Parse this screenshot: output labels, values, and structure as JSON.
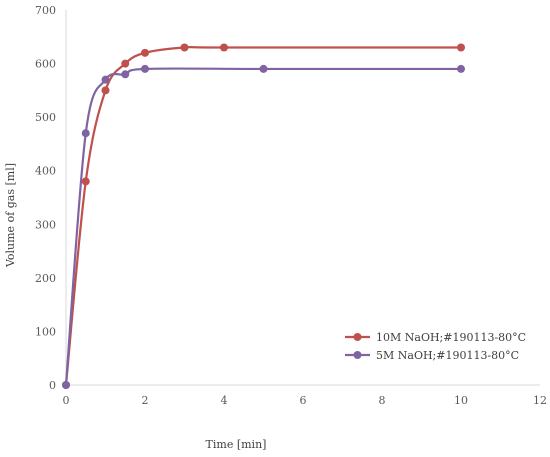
{
  "chart_data": {
    "type": "scatter",
    "title": "",
    "xlabel": "Time [min]",
    "ylabel": "Volume of gas [ml]",
    "xlim": [
      0,
      12
    ],
    "ylim": [
      0,
      700
    ],
    "x_ticks": [
      "0",
      "2",
      "4",
      "6",
      "8",
      "10",
      "12"
    ],
    "y_ticks": [
      "0",
      "100",
      "200",
      "300",
      "400",
      "500",
      "600",
      "700"
    ],
    "grid": false,
    "smooth_lines": true,
    "legend_position": "lower-right",
    "series": [
      {
        "name": "10M NaOH;#190113-80°C",
        "color": "#c0504d",
        "points": [
          [
            0,
            0
          ],
          [
            0.5,
            380
          ],
          [
            1,
            550
          ],
          [
            1.5,
            600
          ],
          [
            2,
            620
          ],
          [
            3,
            630
          ],
          [
            4,
            630
          ],
          [
            10,
            630
          ]
        ]
      },
      {
        "name": "5M NaOH;#190113-80°C",
        "color": "#8064a2",
        "points": [
          [
            0,
            0
          ],
          [
            0.5,
            470
          ],
          [
            1,
            570
          ],
          [
            1.5,
            580
          ],
          [
            2,
            590
          ],
          [
            5,
            590
          ],
          [
            10,
            590
          ]
        ]
      }
    ]
  }
}
